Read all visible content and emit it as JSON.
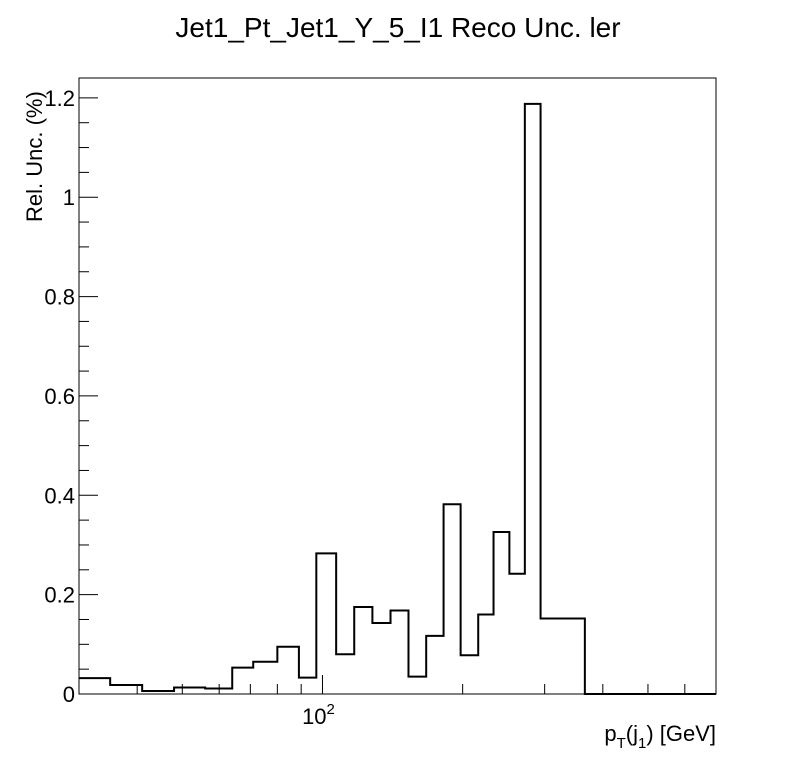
{
  "chart_data": {
    "type": "histogram",
    "title": "Jet1_Pt_Jet1_Y_5_I1 Reco Unc. ler",
    "xlabel": {
      "p": "p",
      "T": "T",
      "open": "(j",
      "sub1": "1",
      "close": ") [GeV]"
    },
    "ylabel": "Rel. Unc. (%)",
    "x_scale": "log",
    "xlim": [
      30,
      700
    ],
    "ylim": [
      0,
      1.24
    ],
    "x_tick_labels": [
      {
        "value": 100,
        "base": "10",
        "exp": "2"
      }
    ],
    "y_ticks": [
      0,
      0.2,
      0.4,
      0.6,
      0.8,
      1,
      1.2
    ],
    "y_tick_labels": [
      "0",
      "0.2",
      "0.4",
      "0.6",
      "0.8",
      "1",
      "1.2"
    ],
    "bin_edges": [
      30,
      35,
      41,
      48,
      56,
      64,
      71,
      80,
      89,
      97,
      107,
      117,
      128,
      140,
      153,
      167,
      182,
      198,
      216,
      233,
      252,
      272,
      294,
      316,
      340,
      366,
      498,
      700
    ],
    "values": [
      0.032,
      0.018,
      0.006,
      0.013,
      0.011,
      0.053,
      0.065,
      0.095,
      0.033,
      0.283,
      0.08,
      0.175,
      0.143,
      0.168,
      0.035,
      0.117,
      0.382,
      0.078,
      0.16,
      0.326,
      0.242,
      1.188,
      0.152,
      0.152,
      0.152,
      0.0,
      0.0
    ],
    "grid": false,
    "legend": "none",
    "line_color": "#000000"
  }
}
